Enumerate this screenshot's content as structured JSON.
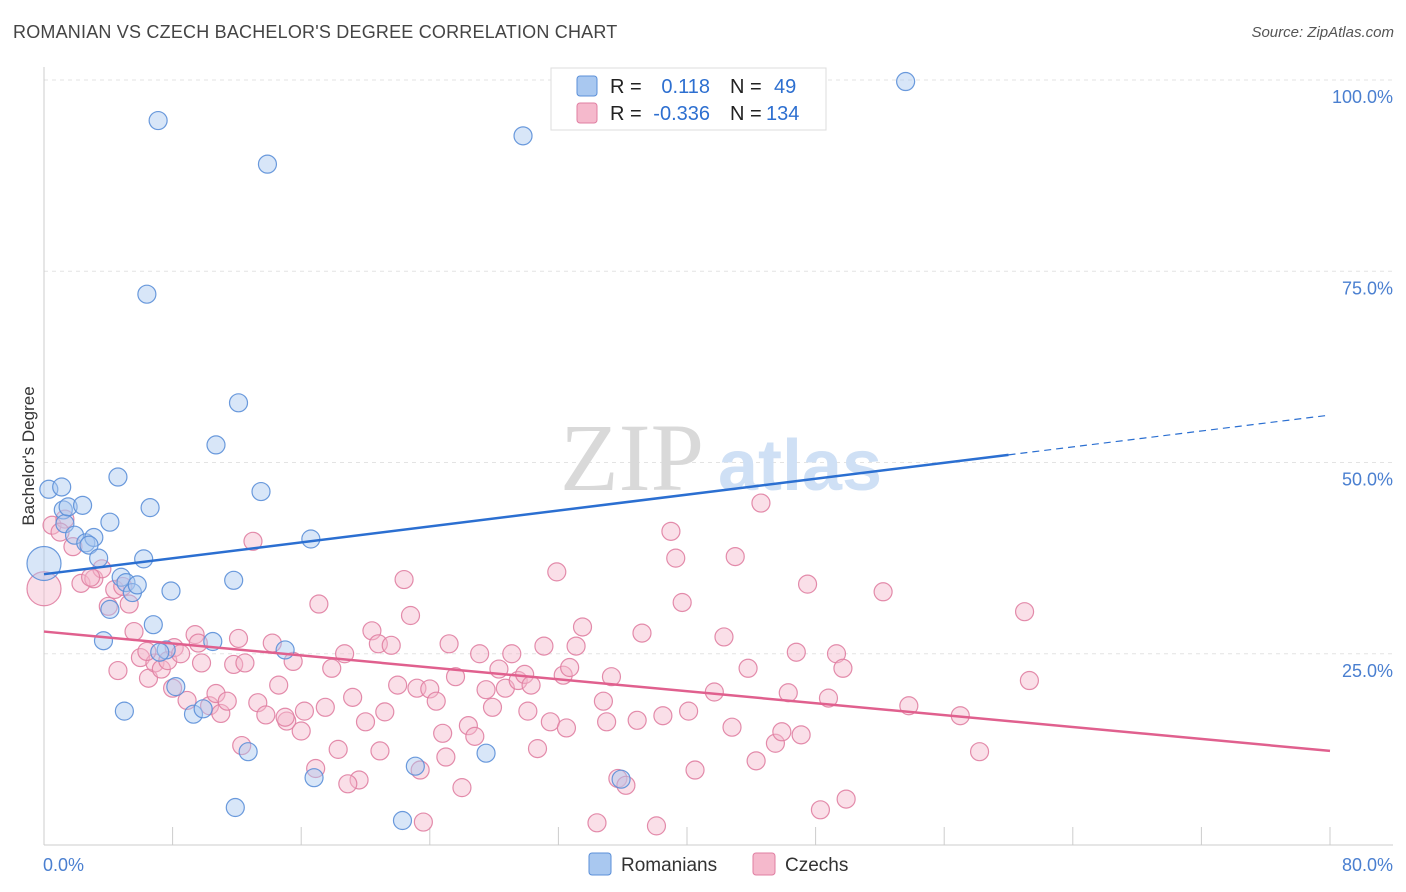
{
  "header": {
    "title": "ROMANIAN VS CZECH BACHELOR'S DEGREE CORRELATION CHART",
    "source": "Source: ZipAtlas.com"
  },
  "watermark": {
    "zip": "ZIP",
    "atlas": "atlas"
  },
  "colors": {
    "romanians_fill": "#a9c8f0",
    "romanians_stroke": "#5b8fd8",
    "romanians_line": "#2b6fd1",
    "czechs_fill": "#f5b9cc",
    "czechs_stroke": "#e07fa2",
    "czechs_line": "#e0608e",
    "tick_label": "#4a7fd0",
    "grid": "#e3e3e3"
  },
  "legend": {
    "rows": [
      {
        "r_label": "R =",
        "r_value": "0.118",
        "n_label": "N =",
        "n_value": "49"
      },
      {
        "r_label": "R =",
        "r_value": "-0.336",
        "n_label": "N =",
        "n_value": "134"
      }
    ]
  },
  "chart_data": {
    "type": "scatter",
    "title": "ROMANIAN VS CZECH BACHELOR'S DEGREE CORRELATION CHART",
    "xlabel": "",
    "ylabel": "Bachelor's Degree",
    "xlim": [
      0,
      80
    ],
    "ylim": [
      0,
      103
    ],
    "x_tick_labels": [
      "0.0%",
      "80.0%"
    ],
    "y_tick_labels": [
      "25.0%",
      "50.0%",
      "75.0%",
      "100.0%"
    ],
    "y_ticks": [
      25,
      50,
      75,
      100
    ],
    "grid": true,
    "legend_position": "bottom-center",
    "series": [
      {
        "name": "Romanians",
        "trend": {
          "x0": 0,
          "y0": 35.4,
          "x1": 60,
          "y1": 51.0,
          "dashed_to_x": 80,
          "dashed_to_y": 56.2
        },
        "points": [
          [
            0.0,
            36.8
          ],
          [
            0.3,
            46.5
          ],
          [
            1.1,
            46.8
          ],
          [
            1.2,
            43.8
          ],
          [
            1.3,
            42.0
          ],
          [
            1.5,
            44.2
          ],
          [
            2.4,
            44.4
          ],
          [
            1.9,
            40.5
          ],
          [
            2.6,
            39.5
          ],
          [
            3.1,
            40.2
          ],
          [
            2.8,
            39.2
          ],
          [
            3.4,
            37.5
          ],
          [
            4.1,
            42.2
          ],
          [
            3.7,
            26.7
          ],
          [
            4.6,
            48.1
          ],
          [
            4.8,
            35.0
          ],
          [
            5.1,
            34.3
          ],
          [
            5.5,
            33.0
          ],
          [
            5.8,
            34.0
          ],
          [
            6.2,
            37.4
          ],
          [
            6.6,
            44.1
          ],
          [
            6.8,
            28.8
          ],
          [
            7.1,
            94.7
          ],
          [
            6.4,
            72.0
          ],
          [
            7.6,
            25.5
          ],
          [
            7.9,
            33.2
          ],
          [
            8.2,
            20.7
          ],
          [
            9.3,
            17.1
          ],
          [
            9.9,
            17.8
          ],
          [
            10.5,
            26.6
          ],
          [
            10.7,
            52.3
          ],
          [
            11.8,
            34.6
          ],
          [
            12.1,
            57.8
          ],
          [
            13.9,
            89.0
          ],
          [
            13.5,
            46.2
          ],
          [
            11.9,
            4.9
          ],
          [
            12.7,
            12.2
          ],
          [
            15.0,
            25.5
          ],
          [
            16.6,
            40.0
          ],
          [
            16.8,
            8.8
          ],
          [
            22.3,
            3.2
          ],
          [
            23.1,
            10.3
          ],
          [
            27.5,
            12.0
          ],
          [
            29.8,
            92.7
          ],
          [
            35.9,
            8.6
          ],
          [
            53.6,
            99.8
          ],
          [
            4.1,
            30.8
          ],
          [
            5.0,
            17.5
          ],
          [
            7.2,
            25.2
          ]
        ]
      },
      {
        "name": "Czechs",
        "trend": {
          "x0": 0,
          "y0": 27.9,
          "x1": 80,
          "y1": 12.3
        },
        "points": [
          [
            0.0,
            33.5
          ],
          [
            0.5,
            41.8
          ],
          [
            1.3,
            42.6
          ],
          [
            1.8,
            39.0
          ],
          [
            2.3,
            34.2
          ],
          [
            3.1,
            34.8
          ],
          [
            3.6,
            36.1
          ],
          [
            4.0,
            31.2
          ],
          [
            4.4,
            33.4
          ],
          [
            4.9,
            33.8
          ],
          [
            5.3,
            31.5
          ],
          [
            5.6,
            27.9
          ],
          [
            6.0,
            24.5
          ],
          [
            6.5,
            21.8
          ],
          [
            6.9,
            23.8
          ],
          [
            7.3,
            23.0
          ],
          [
            7.7,
            24.1
          ],
          [
            8.1,
            25.8
          ],
          [
            8.5,
            25.0
          ],
          [
            8.9,
            18.9
          ],
          [
            9.4,
            27.5
          ],
          [
            9.8,
            23.8
          ],
          [
            10.3,
            18.2
          ],
          [
            10.7,
            19.8
          ],
          [
            11.0,
            17.2
          ],
          [
            11.4,
            18.8
          ],
          [
            11.8,
            23.6
          ],
          [
            12.1,
            27.0
          ],
          [
            12.5,
            23.8
          ],
          [
            13.0,
            39.7
          ],
          [
            13.3,
            18.6
          ],
          [
            13.8,
            17.0
          ],
          [
            14.2,
            26.4
          ],
          [
            14.6,
            20.9
          ],
          [
            15.1,
            16.2
          ],
          [
            15.5,
            24.0
          ],
          [
            16.0,
            14.9
          ],
          [
            16.2,
            17.5
          ],
          [
            17.1,
            31.5
          ],
          [
            17.5,
            18.0
          ],
          [
            17.9,
            23.1
          ],
          [
            18.3,
            12.5
          ],
          [
            18.7,
            25.0
          ],
          [
            19.2,
            19.3
          ],
          [
            19.6,
            8.5
          ],
          [
            20.0,
            16.1
          ],
          [
            20.4,
            28.0
          ],
          [
            20.8,
            26.3
          ],
          [
            21.2,
            17.4
          ],
          [
            21.6,
            26.1
          ],
          [
            22.0,
            20.9
          ],
          [
            22.4,
            34.7
          ],
          [
            22.8,
            30.0
          ],
          [
            23.2,
            20.5
          ],
          [
            23.6,
            3.0
          ],
          [
            24.0,
            20.4
          ],
          [
            24.4,
            18.8
          ],
          [
            24.8,
            14.6
          ],
          [
            25.2,
            26.3
          ],
          [
            25.6,
            22.0
          ],
          [
            26.0,
            7.5
          ],
          [
            26.4,
            15.6
          ],
          [
            27.1,
            25.0
          ],
          [
            27.5,
            20.3
          ],
          [
            27.9,
            18.0
          ],
          [
            28.3,
            23.0
          ],
          [
            28.7,
            20.5
          ],
          [
            29.1,
            25.0
          ],
          [
            29.5,
            21.5
          ],
          [
            29.9,
            22.3
          ],
          [
            30.3,
            20.9
          ],
          [
            30.7,
            12.6
          ],
          [
            31.1,
            26.0
          ],
          [
            31.5,
            16.1
          ],
          [
            31.9,
            35.7
          ],
          [
            32.3,
            22.2
          ],
          [
            32.7,
            23.2
          ],
          [
            33.1,
            26.0
          ],
          [
            33.5,
            28.5
          ],
          [
            34.4,
            2.9
          ],
          [
            35.0,
            16.1
          ],
          [
            35.7,
            8.7
          ],
          [
            35.3,
            22.0
          ],
          [
            36.9,
            16.3
          ],
          [
            37.2,
            27.7
          ],
          [
            38.1,
            2.5
          ],
          [
            38.5,
            16.9
          ],
          [
            39.0,
            41.0
          ],
          [
            39.3,
            37.5
          ],
          [
            39.7,
            31.7
          ],
          [
            40.5,
            9.8
          ],
          [
            41.7,
            20.0
          ],
          [
            42.3,
            27.2
          ],
          [
            43.0,
            37.7
          ],
          [
            43.8,
            23.1
          ],
          [
            44.6,
            44.7
          ],
          [
            45.5,
            13.3
          ],
          [
            45.9,
            14.8
          ],
          [
            46.3,
            19.9
          ],
          [
            46.8,
            25.2
          ],
          [
            47.5,
            34.1
          ],
          [
            48.3,
            4.6
          ],
          [
            48.8,
            19.2
          ],
          [
            49.3,
            25.0
          ],
          [
            49.7,
            23.1
          ],
          [
            52.2,
            33.1
          ],
          [
            53.8,
            18.2
          ],
          [
            57.0,
            16.9
          ],
          [
            58.2,
            12.2
          ],
          [
            61.0,
            30.5
          ],
          [
            61.3,
            21.5
          ],
          [
            1.0,
            40.9
          ],
          [
            2.9,
            35.0
          ],
          [
            6.4,
            25.3
          ],
          [
            9.6,
            26.4
          ],
          [
            12.3,
            13.0
          ],
          [
            15.0,
            16.7
          ],
          [
            16.9,
            10.0
          ],
          [
            18.9,
            8.0
          ],
          [
            20.9,
            12.3
          ],
          [
            23.4,
            9.8
          ],
          [
            25.0,
            11.5
          ],
          [
            26.8,
            14.2
          ],
          [
            30.1,
            17.5
          ],
          [
            32.5,
            15.3
          ],
          [
            34.8,
            18.8
          ],
          [
            36.2,
            7.8
          ],
          [
            40.1,
            17.5
          ],
          [
            42.8,
            15.4
          ],
          [
            44.3,
            11.0
          ],
          [
            47.1,
            14.4
          ],
          [
            49.9,
            6.0
          ],
          [
            4.6,
            22.8
          ],
          [
            8.0,
            20.5
          ]
        ]
      }
    ]
  }
}
